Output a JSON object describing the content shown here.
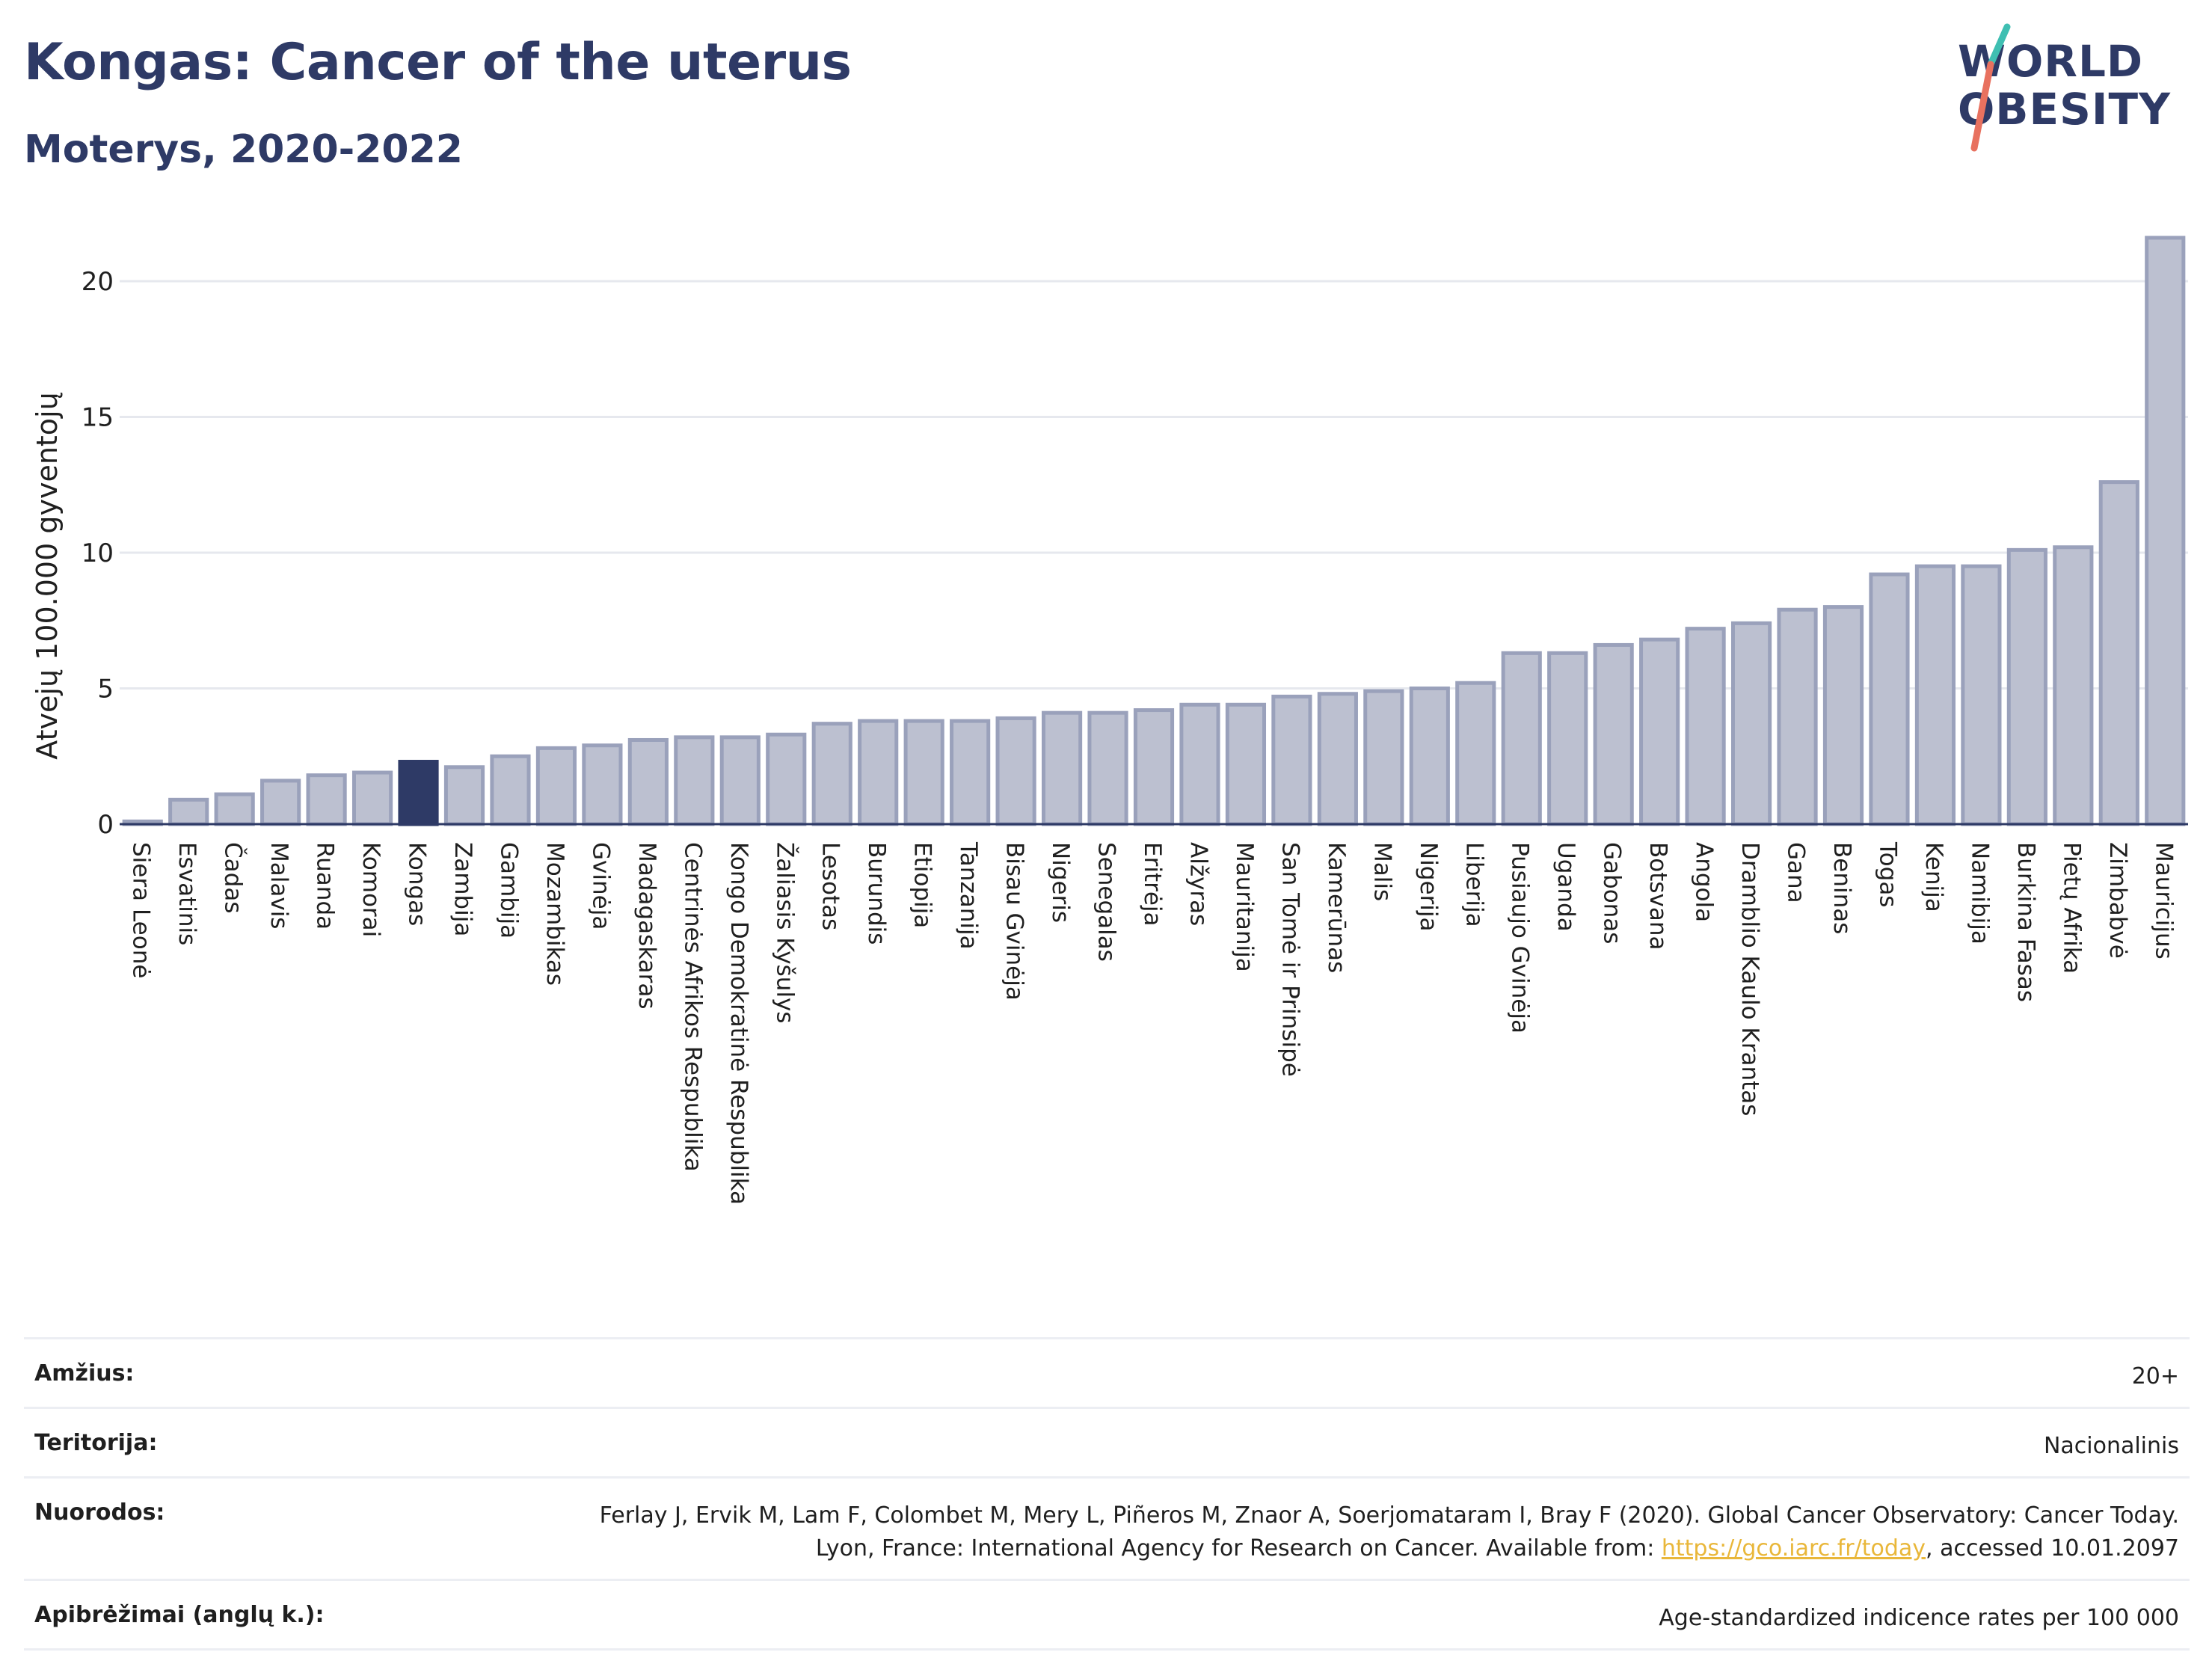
{
  "header": {
    "title": "Kongas: Cancer of the uterus",
    "subtitle": "Moterys, 2020-2022"
  },
  "logo": {
    "line1": "WORLD",
    "line2": "OBESITY"
  },
  "chart_data": {
    "type": "bar",
    "ylabel": "Atvejų 100.000 gyventojų",
    "ylim": [
      0,
      22
    ],
    "yticks": [
      0,
      5,
      10,
      15,
      20
    ],
    "grid": true,
    "highlight": "Kongas",
    "colors": {
      "bar": "#bcc0d0",
      "bar_edge": "#9aa1bb",
      "highlight": "#2e3a66",
      "grid": "#e6e8ee"
    },
    "categories": [
      "Siera Leonė",
      "Esvatinis",
      "Čadas",
      "Malavis",
      "Ruanda",
      "Komorai",
      "Kongas",
      "Zambija",
      "Gambija",
      "Mozambikas",
      "Gvinėja",
      "Madagaskaras",
      "Centrinės Afrikos Respublika",
      "Kongo Demokratinė Respublika",
      "Žaliasis Kyšulys",
      "Lesotas",
      "Burundis",
      "Etiopija",
      "Tanzanija",
      "Bisau Gvinėja",
      "Nigeris",
      "Senegalas",
      "Eritrėja",
      "Alžyras",
      "Mauritanija",
      "San Tomė ir Prinsipė",
      "Kamerūnas",
      "Malis",
      "Nigerija",
      "Liberija",
      "Pusiaujo Gvinėja",
      "Uganda",
      "Gabonas",
      "Botsvana",
      "Angola",
      "Dramblio Kaulo Krantas",
      "Gana",
      "Beninas",
      "Togas",
      "Kenija",
      "Namibija",
      "Burkina Fasas",
      "Pietų Afrika",
      "Zimbabvė",
      "Mauricijus"
    ],
    "values": [
      0.1,
      0.9,
      1.1,
      1.6,
      1.8,
      1.9,
      2.3,
      2.1,
      2.5,
      2.8,
      2.9,
      3.1,
      3.2,
      3.2,
      3.3,
      3.7,
      3.8,
      3.8,
      3.8,
      3.9,
      4.1,
      4.1,
      4.2,
      4.4,
      4.4,
      4.7,
      4.8,
      4.9,
      5.0,
      5.2,
      6.3,
      6.3,
      6.6,
      6.8,
      7.2,
      7.4,
      7.9,
      8.0,
      9.2,
      9.5,
      9.5,
      10.1,
      10.2,
      12.6,
      21.6
    ]
  },
  "meta": [
    {
      "label": "Amžius:",
      "value": "20+"
    },
    {
      "label": "Teritorija:",
      "value": "Nacionalinis"
    },
    {
      "label": "Nuorodos:",
      "value_pre": "Ferlay J, Ervik M, Lam F, Colombet M, Mery L, Piñeros M, Znaor A, Soerjomataram I, Bray F (2020). Global Cancer Observatory: Cancer Today. Lyon, France: International Agency for Research on Cancer. Available from: ",
      "link": "https://gco.iarc.fr/today",
      "value_post": ", accessed 10.01.2097"
    },
    {
      "label": "Apibrėžimai (anglų k.):",
      "value": "Age-standardized indicence rates per 100 000"
    }
  ]
}
